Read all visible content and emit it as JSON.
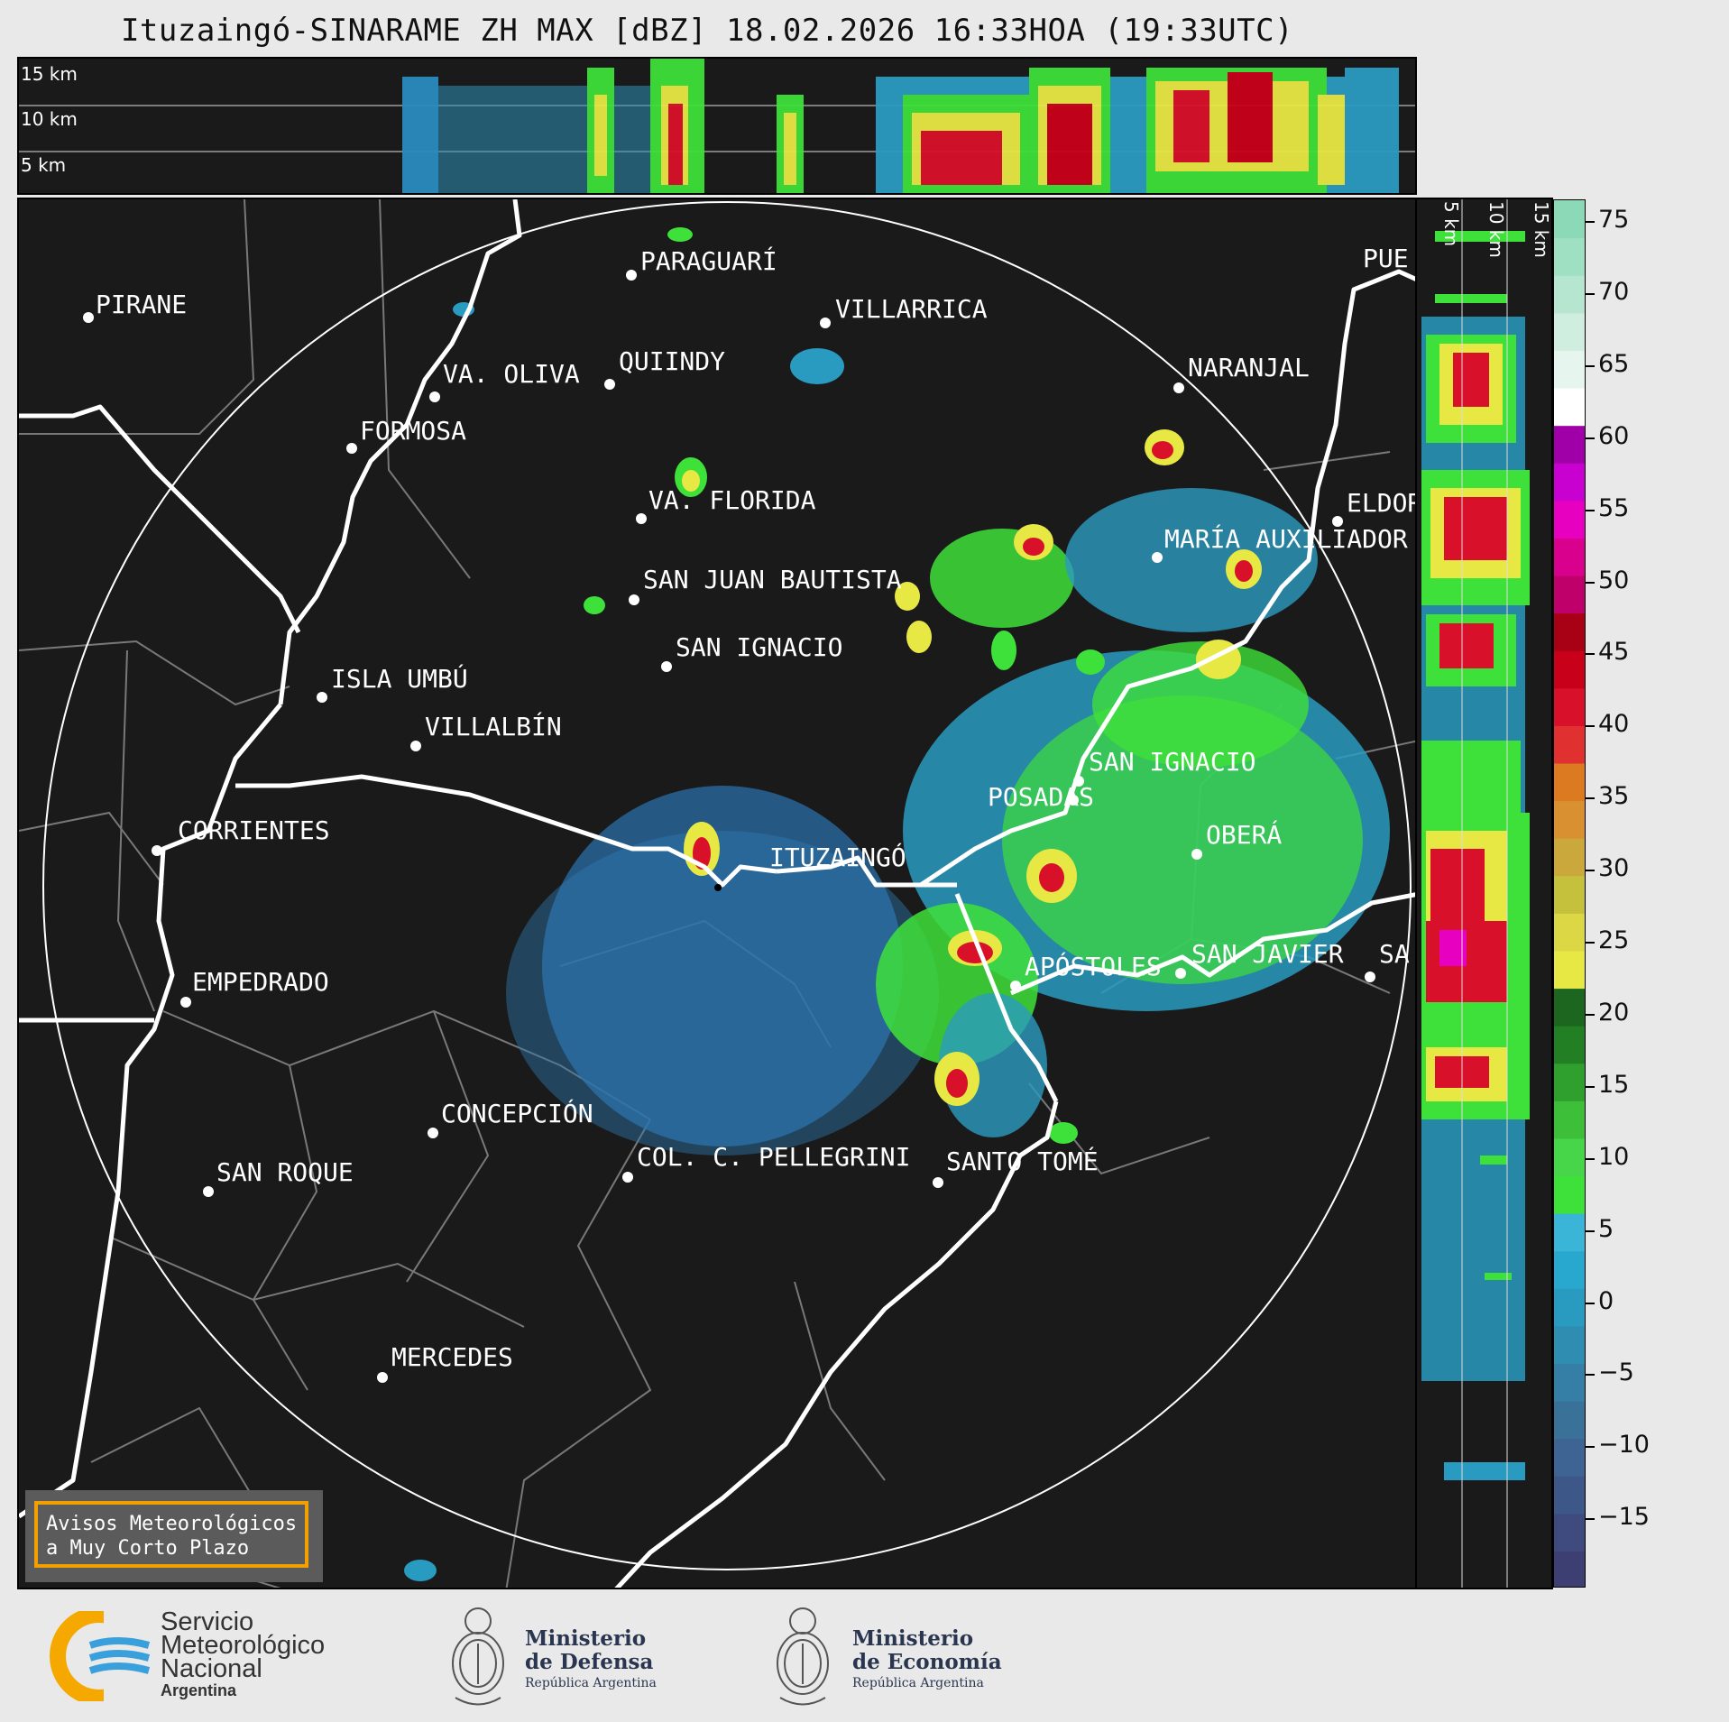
{
  "title": "Ituzaingó-SINARAME ZH MAX [dBZ] 18.02.2026 16:33HOA (19:33UTC)",
  "top_strip": {
    "labels": [
      "15 km",
      "10 km",
      "5 km"
    ]
  },
  "side_strip": {
    "labels": [
      "5 km",
      "10 km",
      "15 km"
    ]
  },
  "cities": [
    {
      "id": "pirane",
      "name": "PIRANE"
    },
    {
      "id": "paraguari",
      "name": "PARAGUARÍ"
    },
    {
      "id": "villarrica",
      "name": "VILLARRICA"
    },
    {
      "id": "quiindy",
      "name": "QUIINDY"
    },
    {
      "id": "va-oliva",
      "name": "VA. OLIVA"
    },
    {
      "id": "formosa",
      "name": "FORMOSA"
    },
    {
      "id": "naranjal",
      "name": "NARANJAL"
    },
    {
      "id": "va-florida",
      "name": "VA. FLORIDA"
    },
    {
      "id": "eldorado",
      "name": "ELDOR"
    },
    {
      "id": "maria-auxiliadora",
      "name": "MARÍA AUXILIADOR"
    },
    {
      "id": "san-juan-bautista",
      "name": "SAN JUAN BAUTISTA"
    },
    {
      "id": "san-ignacio-py",
      "name": "SAN IGNACIO"
    },
    {
      "id": "isla-umbu",
      "name": "ISLA UMBÚ"
    },
    {
      "id": "villalbin",
      "name": "VILLALBÍN"
    },
    {
      "id": "san-ignacio-ar",
      "name": "SAN IGNACIO"
    },
    {
      "id": "posadas",
      "name": "POSADAS"
    },
    {
      "id": "corrientes",
      "name": "CORRIENTES"
    },
    {
      "id": "ituzaingo",
      "name": "ITUZAINGÓ"
    },
    {
      "id": "obera",
      "name": "OBERÁ"
    },
    {
      "id": "apostoles",
      "name": "APÓSTOLES"
    },
    {
      "id": "san-javier",
      "name": "SAN JAVIER"
    },
    {
      "id": "san-edge",
      "name": "SA"
    },
    {
      "id": "empedrado",
      "name": "EMPEDRADO"
    },
    {
      "id": "concepcion",
      "name": "CONCEPCIÓN"
    },
    {
      "id": "col-pellegrini",
      "name": "COL. C. PELLEGRINI"
    },
    {
      "id": "santo-tome",
      "name": "SANTO TOMÉ"
    },
    {
      "id": "san-roque",
      "name": "SAN ROQUE"
    },
    {
      "id": "mercedes",
      "name": "MERCEDES"
    },
    {
      "id": "puerto",
      "name": "PUE"
    }
  ],
  "colorbar": {
    "unit": "dBZ",
    "ticks": [
      "75",
      "70",
      "65",
      "60",
      "55",
      "50",
      "45",
      "40",
      "35",
      "30",
      "25",
      "20",
      "15",
      "10",
      "5",
      "0",
      "−5",
      "−10",
      "−15"
    ],
    "colors": [
      "#3d3f73",
      "#3f4b7e",
      "#3e5789",
      "#3d6492",
      "#3a7199",
      "#357fa6",
      "#2f8db2",
      "#2a9bc0",
      "#29a8cf",
      "#3ab4d7",
      "#3ee03a",
      "#47d54a",
      "#3dbf3a",
      "#2fa02e",
      "#237f24",
      "#1d6620",
      "#e8e844",
      "#dcd845",
      "#c6c13d",
      "#cba83c",
      "#d99030",
      "#dc7a22",
      "#e03030",
      "#d8102a",
      "#c8001a",
      "#a80015",
      "#c0006a",
      "#d8008c",
      "#e800c0",
      "#c800d0",
      "#a000a8",
      "#ffffff",
      "#e6f5ee",
      "#cfeee0",
      "#b6e6d0",
      "#9fdfc2",
      "#8cd9b8"
    ]
  },
  "warning_box": {
    "line1": "Avisos Meteorológicos",
    "line2": "a Muy Corto Plazo"
  },
  "footer": {
    "smn": {
      "line1": "Servicio",
      "line2": "Meteorológico",
      "line3": "Nacional",
      "line4": "Argentina"
    },
    "defensa": {
      "line1": "Ministerio",
      "line2": "de Defensa",
      "line3": "República Argentina"
    },
    "economia": {
      "line1": "Ministerio",
      "line2": "de Economía",
      "line3": "República Argentina"
    }
  }
}
